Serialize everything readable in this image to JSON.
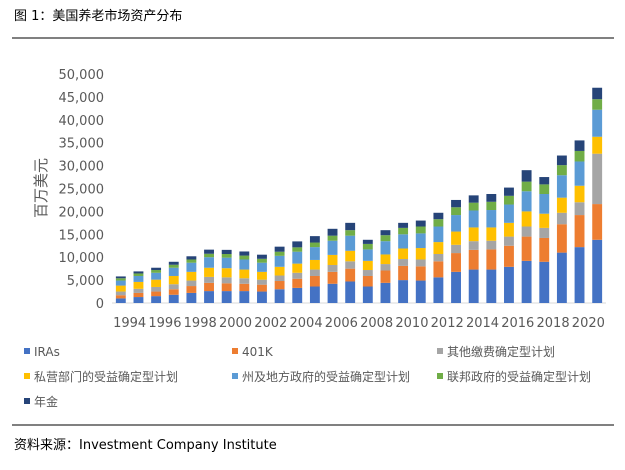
{
  "chart_data": {
    "type": "bar",
    "stacked": true,
    "title": "图 1：美国养老市场资产分布",
    "ylabel": "百万美元",
    "source": "资料来源：Investment Company Institute",
    "categories": [
      "1994",
      null,
      "1996",
      null,
      "1998",
      null,
      "2000",
      null,
      "2002",
      null,
      "2004",
      null,
      "2006",
      null,
      "2008",
      null,
      "2010",
      null,
      "2012",
      null,
      "2014",
      null,
      "2016",
      null,
      "2018",
      null,
      "2020",
      null
    ],
    "ylim": [
      0,
      50000
    ],
    "yticks": [
      0,
      {
        "value": 5000,
        "label": "5,000"
      },
      {
        "value": 10000,
        "label": "10,000"
      },
      {
        "value": 15000,
        "label": "15,000"
      },
      {
        "value": 20000,
        "label": "20,000"
      },
      {
        "value": 25000,
        "label": "25,000"
      },
      {
        "value": 30000,
        "label": "30,000"
      },
      {
        "value": 35000,
        "label": "35,000"
      },
      {
        "value": 40000,
        "label": "40,000"
      },
      {
        "value": 45000,
        "label": "45,000"
      },
      {
        "value": 50000,
        "label": "50,000"
      }
    ],
    "grid": false,
    "series": [
      {
        "name": "IRAs",
        "color": "#4472c4",
        "values": [
          1000,
          1300,
          1500,
          1800,
          2200,
          2600,
          2600,
          2600,
          2500,
          3000,
          3300,
          3600,
          4200,
          4700,
          3600,
          4400,
          5000,
          4900,
          5600,
          6800,
          7300,
          7300,
          7900,
          9200,
          9000,
          11000,
          12200,
          13800
        ]
      },
      {
        "name": "401K",
        "color": "#ed7d31",
        "values": [
          700,
          900,
          1000,
          1200,
          1500,
          1800,
          1700,
          1600,
          1500,
          1800,
          2000,
          2300,
          2600,
          2800,
          2300,
          2700,
          3100,
          3100,
          3500,
          4100,
          4300,
          4400,
          4600,
          5300,
          5200,
          6200,
          7000,
          7800
        ]
      },
      {
        "name": "其他缴费确定型计划",
        "color": "#a5a5a5",
        "values": [
          800,
          900,
          1000,
          1100,
          1200,
          1300,
          1300,
          1200,
          1100,
          1200,
          1300,
          1400,
          1500,
          1600,
          1300,
          1400,
          1500,
          1500,
          1600,
          1800,
          1900,
          1900,
          2000,
          2200,
          2200,
          2500,
          2800,
          11000
        ]
      },
      {
        "name": "私营部门的受益确定型计划",
        "color": "#ffc000",
        "values": [
          1300,
          1500,
          1600,
          1800,
          1900,
          2000,
          2000,
          1900,
          1700,
          1900,
          2000,
          2100,
          2200,
          2300,
          2000,
          2100,
          2300,
          2500,
          2600,
          2900,
          3000,
          2900,
          3000,
          3300,
          3100,
          3300,
          3600,
          3700
        ]
      },
      {
        "name": "州及地方政府的受益确定型计划",
        "color": "#5b9bd5",
        "values": [
          1100,
          1300,
          1500,
          1800,
          2000,
          2300,
          2300,
          2200,
          2000,
          2400,
          2600,
          2800,
          3100,
          3300,
          2500,
          2900,
          3100,
          3200,
          3400,
          3600,
          3700,
          3800,
          4000,
          4400,
          4300,
          4900,
          5300,
          5900
        ]
      },
      {
        "name": "联邦政府的受益确定型计划",
        "color": "#70ad47",
        "values": [
          500,
          550,
          600,
          650,
          700,
          750,
          800,
          850,
          850,
          900,
          950,
          1000,
          1100,
          1200,
          1200,
          1300,
          1400,
          1500,
          1600,
          1700,
          1700,
          1800,
          1900,
          2100,
          2100,
          2200,
          2300,
          2300
        ]
      },
      {
        "name": "年金",
        "color": "#264478",
        "values": [
          400,
          450,
          500,
          650,
          700,
          900,
          900,
          900,
          900,
          1100,
          1300,
          1400,
          1500,
          1600,
          900,
          1100,
          1100,
          1300,
          1400,
          1600,
          1600,
          1700,
          1800,
          2500,
          1600,
          2100,
          2300,
          2500
        ]
      }
    ]
  }
}
